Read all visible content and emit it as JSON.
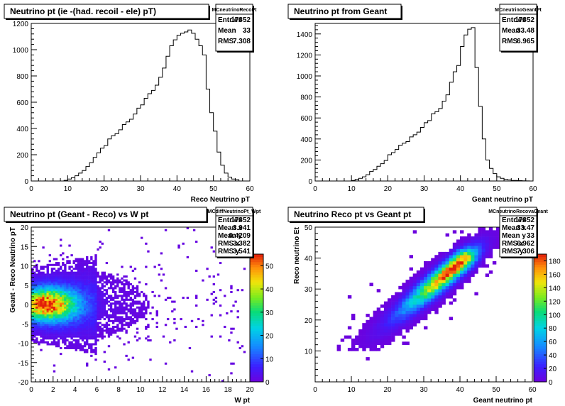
{
  "chart_data": [
    {
      "type": "bar",
      "title": "Neutrino pt (ie -(had. recoil - ele) pT)",
      "xlabel": "Reco Neutrino pT",
      "ylabel": "",
      "xlim": [
        0,
        60
      ],
      "ylim": [
        0,
        1200
      ],
      "xticks": [
        0,
        10,
        20,
        30,
        40,
        50,
        60
      ],
      "yticks": [
        0,
        200,
        400,
        600,
        800,
        1000,
        1200
      ],
      "bin_width": 1,
      "x": [
        9,
        10,
        11,
        12,
        13,
        14,
        15,
        16,
        17,
        18,
        19,
        20,
        21,
        22,
        23,
        24,
        25,
        26,
        27,
        28,
        29,
        30,
        31,
        32,
        33,
        34,
        35,
        36,
        37,
        38,
        39,
        40,
        41,
        42,
        43,
        44,
        45,
        46,
        47,
        48,
        49,
        50,
        51,
        52,
        53,
        54,
        55,
        56
      ],
      "values": [
        5,
        15,
        25,
        40,
        60,
        80,
        110,
        140,
        180,
        215,
        250,
        270,
        320,
        345,
        360,
        390,
        430,
        450,
        470,
        510,
        555,
        580,
        630,
        665,
        690,
        730,
        790,
        860,
        950,
        1030,
        1075,
        1110,
        1125,
        1135,
        1150,
        1125,
        1080,
        1030,
        960,
        700,
        520,
        380,
        220,
        120,
        60,
        30,
        15,
        10
      ],
      "stats": {
        "name": "MCneutrinoRecoPt",
        "rows": [
          {
            "label": "Entries",
            "value": "17852"
          },
          {
            "label": "Mean",
            "value": "33"
          },
          {
            "label": "RMS",
            "value": "7.308"
          }
        ]
      }
    },
    {
      "type": "bar",
      "title": "Neutrino pt from Geant",
      "xlabel": "Geant neutrino pT",
      "ylabel": "",
      "xlim": [
        0,
        60
      ],
      "ylim": [
        0,
        1500
      ],
      "xticks": [
        0,
        10,
        20,
        30,
        40,
        50,
        60
      ],
      "yticks": [
        0,
        200,
        400,
        600,
        800,
        1000,
        1200,
        1400
      ],
      "bin_width": 1,
      "x": [
        10,
        11,
        12,
        13,
        14,
        15,
        16,
        17,
        18,
        19,
        20,
        21,
        22,
        23,
        24,
        25,
        26,
        27,
        28,
        29,
        30,
        31,
        32,
        33,
        34,
        35,
        36,
        37,
        38,
        39,
        40,
        41,
        42,
        43,
        44,
        45,
        46,
        47,
        48,
        49,
        50,
        51,
        52,
        53,
        54,
        55,
        56,
        57,
        58
      ],
      "values": [
        5,
        15,
        25,
        40,
        60,
        90,
        110,
        140,
        165,
        195,
        250,
        270,
        300,
        340,
        360,
        375,
        420,
        440,
        465,
        510,
        555,
        575,
        640,
        660,
        690,
        760,
        820,
        940,
        1040,
        1100,
        1280,
        1390,
        1445,
        1460,
        1080,
        710,
        400,
        200,
        120,
        70,
        40,
        25,
        15,
        10,
        5,
        5,
        3,
        2,
        1
      ],
      "stats": {
        "name": "MCneutrinoGeantPt",
        "rows": [
          {
            "label": "Entries",
            "value": "17852"
          },
          {
            "label": "Mean",
            "value": "33.48"
          },
          {
            "label": "RMS",
            "value": "6.965"
          }
        ]
      }
    },
    {
      "type": "heatmap",
      "title": "Neutrino pt (Geant - Reco) vs W pt",
      "xlabel": "W pt",
      "ylabel": "Geant - Reco Neutrino pT",
      "xlim": [
        0,
        20
      ],
      "ylim": [
        -20,
        20
      ],
      "xticks": [
        0,
        2,
        4,
        6,
        8,
        10,
        12,
        14,
        16,
        18,
        20
      ],
      "yticks": [
        -20,
        -15,
        -10,
        -5,
        0,
        5,
        10,
        15,
        20
      ],
      "zlim": [
        0,
        55
      ],
      "zticks": [
        0,
        10,
        20,
        30,
        40,
        50
      ],
      "peak": {
        "x": 1.4,
        "y": 0,
        "z": 52
      },
      "stats": {
        "name": "MCdiffNeutrinoPt_Wpt",
        "rows": [
          {
            "label": "Entries",
            "value": "17852"
          },
          {
            "label": "Mean x",
            "value": "3.941"
          },
          {
            "label": "Mean y",
            "value": "0.4209"
          },
          {
            "label": "RMS x",
            "value": "3.382"
          },
          {
            "label": "RMS y",
            "value": "3.541"
          }
        ]
      }
    },
    {
      "type": "heatmap",
      "title": "Neutrino Reco pt vs Geant pt",
      "xlabel": "Geant neutrino pt",
      "ylabel": "Reco neutrino Et",
      "xlim": [
        0,
        60
      ],
      "ylim": [
        0,
        50
      ],
      "xticks": [
        0,
        10,
        20,
        30,
        40,
        50,
        60
      ],
      "yticks": [
        10,
        20,
        30,
        40,
        50
      ],
      "zlim": [
        0,
        190
      ],
      "zticks": [
        0,
        20,
        40,
        60,
        80,
        100,
        120,
        140,
        160,
        180
      ],
      "peak": {
        "x": 39,
        "y": 39,
        "z": 185
      },
      "stats": {
        "name": "MCneutrinoRecovaGeant",
        "rows": [
          {
            "label": "Entries",
            "value": "17852"
          },
          {
            "label": "Mean x",
            "value": "33.47"
          },
          {
            "label": "Mean y",
            "value": "33"
          },
          {
            "label": "RMS x",
            "value": "6.962"
          },
          {
            "label": "RMS y",
            "value": "7.306"
          }
        ]
      }
    }
  ]
}
